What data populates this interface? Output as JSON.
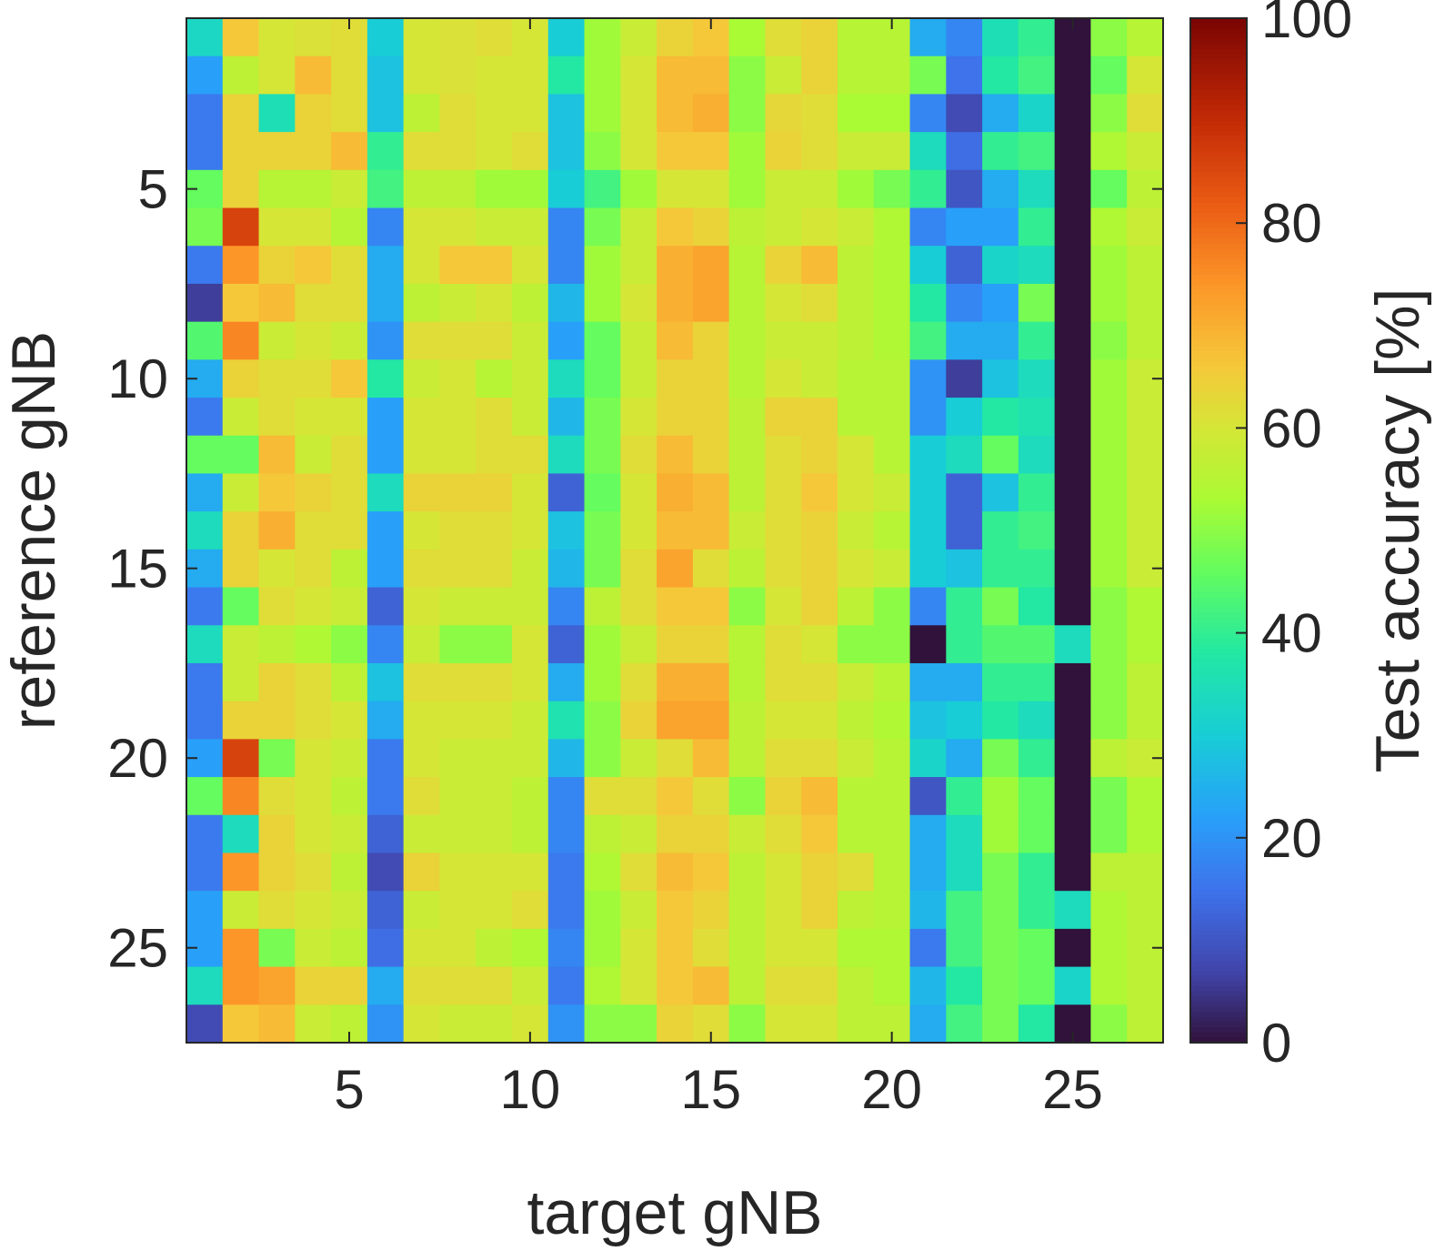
{
  "chart_data": {
    "type": "heatmap",
    "xlabel": "target gNB",
    "ylabel": "reference gNB",
    "x_range": [
      1,
      27
    ],
    "y_range": [
      1,
      27
    ],
    "xticks": [
      5,
      10,
      15,
      20,
      25
    ],
    "yticks": [
      5,
      10,
      15,
      20,
      25
    ],
    "colorbar": {
      "label": "Test accuracy [%]",
      "range": [
        0,
        100
      ],
      "ticks": [
        0,
        20,
        40,
        60,
        80,
        100
      ],
      "colormap": "turbo"
    },
    "rows": [
      [
        33,
        66,
        60,
        61,
        62,
        30,
        60,
        61,
        62,
        60,
        30,
        52,
        58,
        64,
        66,
        53,
        62,
        64,
        55,
        55,
        24,
        18,
        35,
        40,
        0,
        50,
        55
      ],
      [
        22,
        56,
        60,
        68,
        62,
        28,
        60,
        61,
        60,
        60,
        38,
        52,
        60,
        68,
        68,
        50,
        58,
        64,
        55,
        55,
        48,
        15,
        38,
        42,
        0,
        46,
        60
      ],
      [
        16,
        64,
        35,
        64,
        62,
        28,
        56,
        62,
        60,
        60,
        28,
        52,
        60,
        68,
        70,
        50,
        63,
        62,
        53,
        53,
        18,
        8,
        24,
        32,
        0,
        50,
        62
      ],
      [
        16,
        64,
        64,
        64,
        68,
        40,
        62,
        62,
        60,
        62,
        28,
        50,
        60,
        66,
        66,
        52,
        64,
        62,
        58,
        58,
        34,
        14,
        40,
        42,
        0,
        54,
        58
      ],
      [
        46,
        64,
        55,
        55,
        58,
        42,
        56,
        56,
        52,
        52,
        30,
        42,
        52,
        60,
        60,
        52,
        58,
        58,
        52,
        48,
        40,
        10,
        24,
        34,
        0,
        46,
        56
      ],
      [
        48,
        86,
        60,
        60,
        55,
        18,
        60,
        60,
        58,
        58,
        18,
        48,
        58,
        66,
        64,
        56,
        58,
        60,
        58,
        54,
        18,
        22,
        22,
        40,
        0,
        54,
        58
      ],
      [
        16,
        74,
        64,
        66,
        62,
        24,
        60,
        66,
        66,
        60,
        18,
        52,
        58,
        70,
        72,
        55,
        64,
        68,
        56,
        54,
        30,
        12,
        32,
        34,
        0,
        52,
        56
      ],
      [
        6,
        66,
        68,
        62,
        62,
        24,
        56,
        58,
        60,
        56,
        26,
        52,
        60,
        70,
        72,
        55,
        60,
        62,
        56,
        54,
        38,
        18,
        22,
        48,
        0,
        52,
        56
      ],
      [
        44,
        76,
        58,
        60,
        58,
        20,
        62,
        62,
        62,
        58,
        22,
        46,
        58,
        68,
        64,
        55,
        58,
        58,
        56,
        54,
        42,
        24,
        24,
        40,
        0,
        50,
        56
      ],
      [
        24,
        64,
        62,
        62,
        66,
        38,
        58,
        60,
        55,
        58,
        34,
        46,
        58,
        64,
        64,
        55,
        60,
        58,
        55,
        55,
        20,
        6,
        28,
        34,
        0,
        52,
        58
      ],
      [
        16,
        58,
        62,
        60,
        60,
        22,
        60,
        60,
        62,
        58,
        26,
        48,
        60,
        64,
        64,
        56,
        64,
        64,
        55,
        55,
        20,
        30,
        38,
        36,
        0,
        52,
        58
      ],
      [
        46,
        46,
        68,
        58,
        62,
        22,
        60,
        60,
        62,
        62,
        34,
        48,
        62,
        68,
        64,
        56,
        62,
        64,
        60,
        55,
        30,
        34,
        46,
        34,
        0,
        52,
        58
      ],
      [
        24,
        58,
        66,
        64,
        62,
        34,
        64,
        64,
        64,
        60,
        12,
        46,
        60,
        70,
        68,
        56,
        62,
        66,
        60,
        58,
        30,
        12,
        28,
        40,
        0,
        52,
        58
      ],
      [
        34,
        64,
        70,
        62,
        62,
        22,
        60,
        62,
        62,
        60,
        28,
        48,
        60,
        68,
        68,
        58,
        62,
        64,
        58,
        55,
        30,
        12,
        40,
        42,
        0,
        52,
        58
      ],
      [
        24,
        64,
        60,
        62,
        56,
        22,
        62,
        62,
        62,
        58,
        26,
        48,
        62,
        72,
        62,
        56,
        62,
        64,
        60,
        58,
        30,
        28,
        40,
        40,
        0,
        52,
        58
      ],
      [
        16,
        46,
        62,
        60,
        58,
        12,
        60,
        58,
        58,
        58,
        18,
        56,
        62,
        66,
        66,
        50,
        60,
        64,
        56,
        50,
        18,
        40,
        48,
        38,
        0,
        50,
        54
      ],
      [
        34,
        58,
        56,
        54,
        50,
        18,
        58,
        50,
        50,
        60,
        12,
        52,
        58,
        64,
        64,
        55,
        62,
        60,
        50,
        50,
        0,
        40,
        44,
        44,
        34,
        50,
        54
      ],
      [
        16,
        58,
        64,
        62,
        56,
        28,
        62,
        62,
        62,
        60,
        24,
        52,
        62,
        70,
        70,
        55,
        62,
        62,
        58,
        55,
        24,
        24,
        40,
        40,
        0,
        50,
        56
      ],
      [
        16,
        64,
        64,
        62,
        60,
        24,
        60,
        60,
        60,
        58,
        36,
        50,
        64,
        72,
        72,
        56,
        60,
        60,
        56,
        54,
        28,
        30,
        38,
        34,
        0,
        50,
        56
      ],
      [
        22,
        86,
        48,
        60,
        58,
        16,
        60,
        58,
        58,
        58,
        26,
        50,
        58,
        62,
        68,
        56,
        62,
        62,
        58,
        55,
        32,
        24,
        48,
        40,
        0,
        56,
        58
      ],
      [
        46,
        76,
        62,
        60,
        56,
        16,
        62,
        58,
        58,
        56,
        18,
        62,
        62,
        66,
        62,
        50,
        64,
        68,
        55,
        55,
        10,
        40,
        52,
        46,
        0,
        48,
        54
      ],
      [
        16,
        34,
        64,
        60,
        58,
        12,
        58,
        58,
        58,
        56,
        18,
        56,
        58,
        64,
        64,
        58,
        62,
        66,
        55,
        55,
        24,
        34,
        52,
        46,
        0,
        48,
        54
      ],
      [
        16,
        74,
        64,
        62,
        56,
        8,
        64,
        60,
        60,
        60,
        16,
        54,
        62,
        68,
        66,
        56,
        60,
        64,
        62,
        55,
        24,
        34,
        48,
        40,
        0,
        56,
        56
      ],
      [
        22,
        58,
        62,
        60,
        58,
        12,
        58,
        60,
        60,
        62,
        16,
        52,
        58,
        66,
        64,
        56,
        60,
        64,
        56,
        55,
        26,
        42,
        48,
        40,
        34,
        54,
        56
      ],
      [
        22,
        74,
        48,
        58,
        56,
        14,
        60,
        60,
        56,
        54,
        18,
        52,
        60,
        66,
        62,
        56,
        60,
        60,
        54,
        54,
        16,
        42,
        48,
        46,
        0,
        54,
        56
      ],
      [
        34,
        74,
        72,
        64,
        64,
        24,
        62,
        62,
        62,
        58,
        16,
        54,
        60,
        66,
        68,
        56,
        62,
        62,
        56,
        54,
        26,
        38,
        48,
        46,
        32,
        54,
        56
      ],
      [
        8,
        66,
        68,
        58,
        56,
        20,
        60,
        58,
        58,
        60,
        20,
        50,
        50,
        64,
        62,
        50,
        60,
        60,
        56,
        56,
        24,
        42,
        48,
        38,
        0,
        50,
        56
      ]
    ]
  }
}
